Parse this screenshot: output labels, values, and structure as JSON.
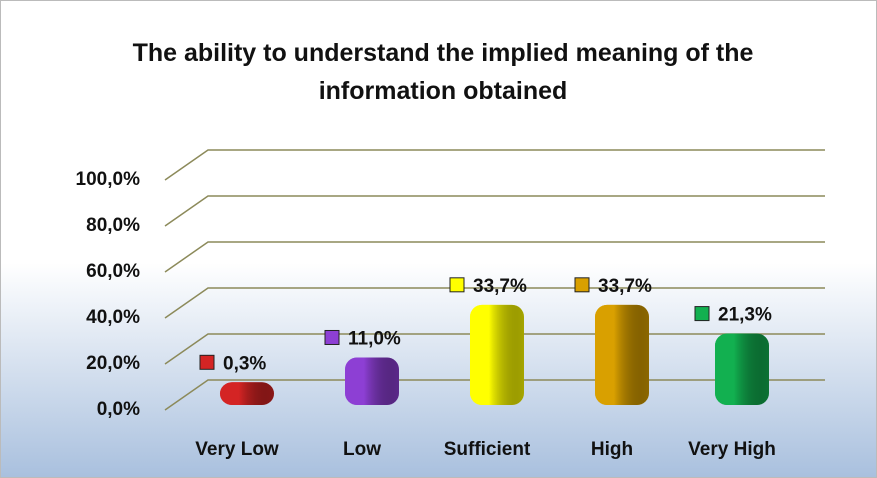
{
  "chart_data": {
    "type": "bar3d",
    "title": "The ability to understand the implied meaning of the information obtained",
    "categories": [
      "Very Low",
      "Low",
      "Sufficient",
      "High",
      "Very High"
    ],
    "values": [
      0.3,
      11.0,
      33.7,
      33.7,
      21.3
    ],
    "value_labels": [
      "0,3%",
      "11,0%",
      "33,7%",
      "33,7%",
      "21,3%"
    ],
    "colors": [
      "#d42424",
      "#8d3fd4",
      "#ffff00",
      "#d9a000",
      "#12b050"
    ],
    "ylim": [
      0,
      100
    ],
    "yticks": [
      {
        "value": 0,
        "label": "0,0%"
      },
      {
        "value": 20,
        "label": "20,0%"
      },
      {
        "value": 40,
        "label": "40,0%"
      },
      {
        "value": 60,
        "label": "60,0%"
      },
      {
        "value": 80,
        "label": "80,0%"
      },
      {
        "value": 100,
        "label": "100,0%"
      }
    ],
    "grid": true
  }
}
